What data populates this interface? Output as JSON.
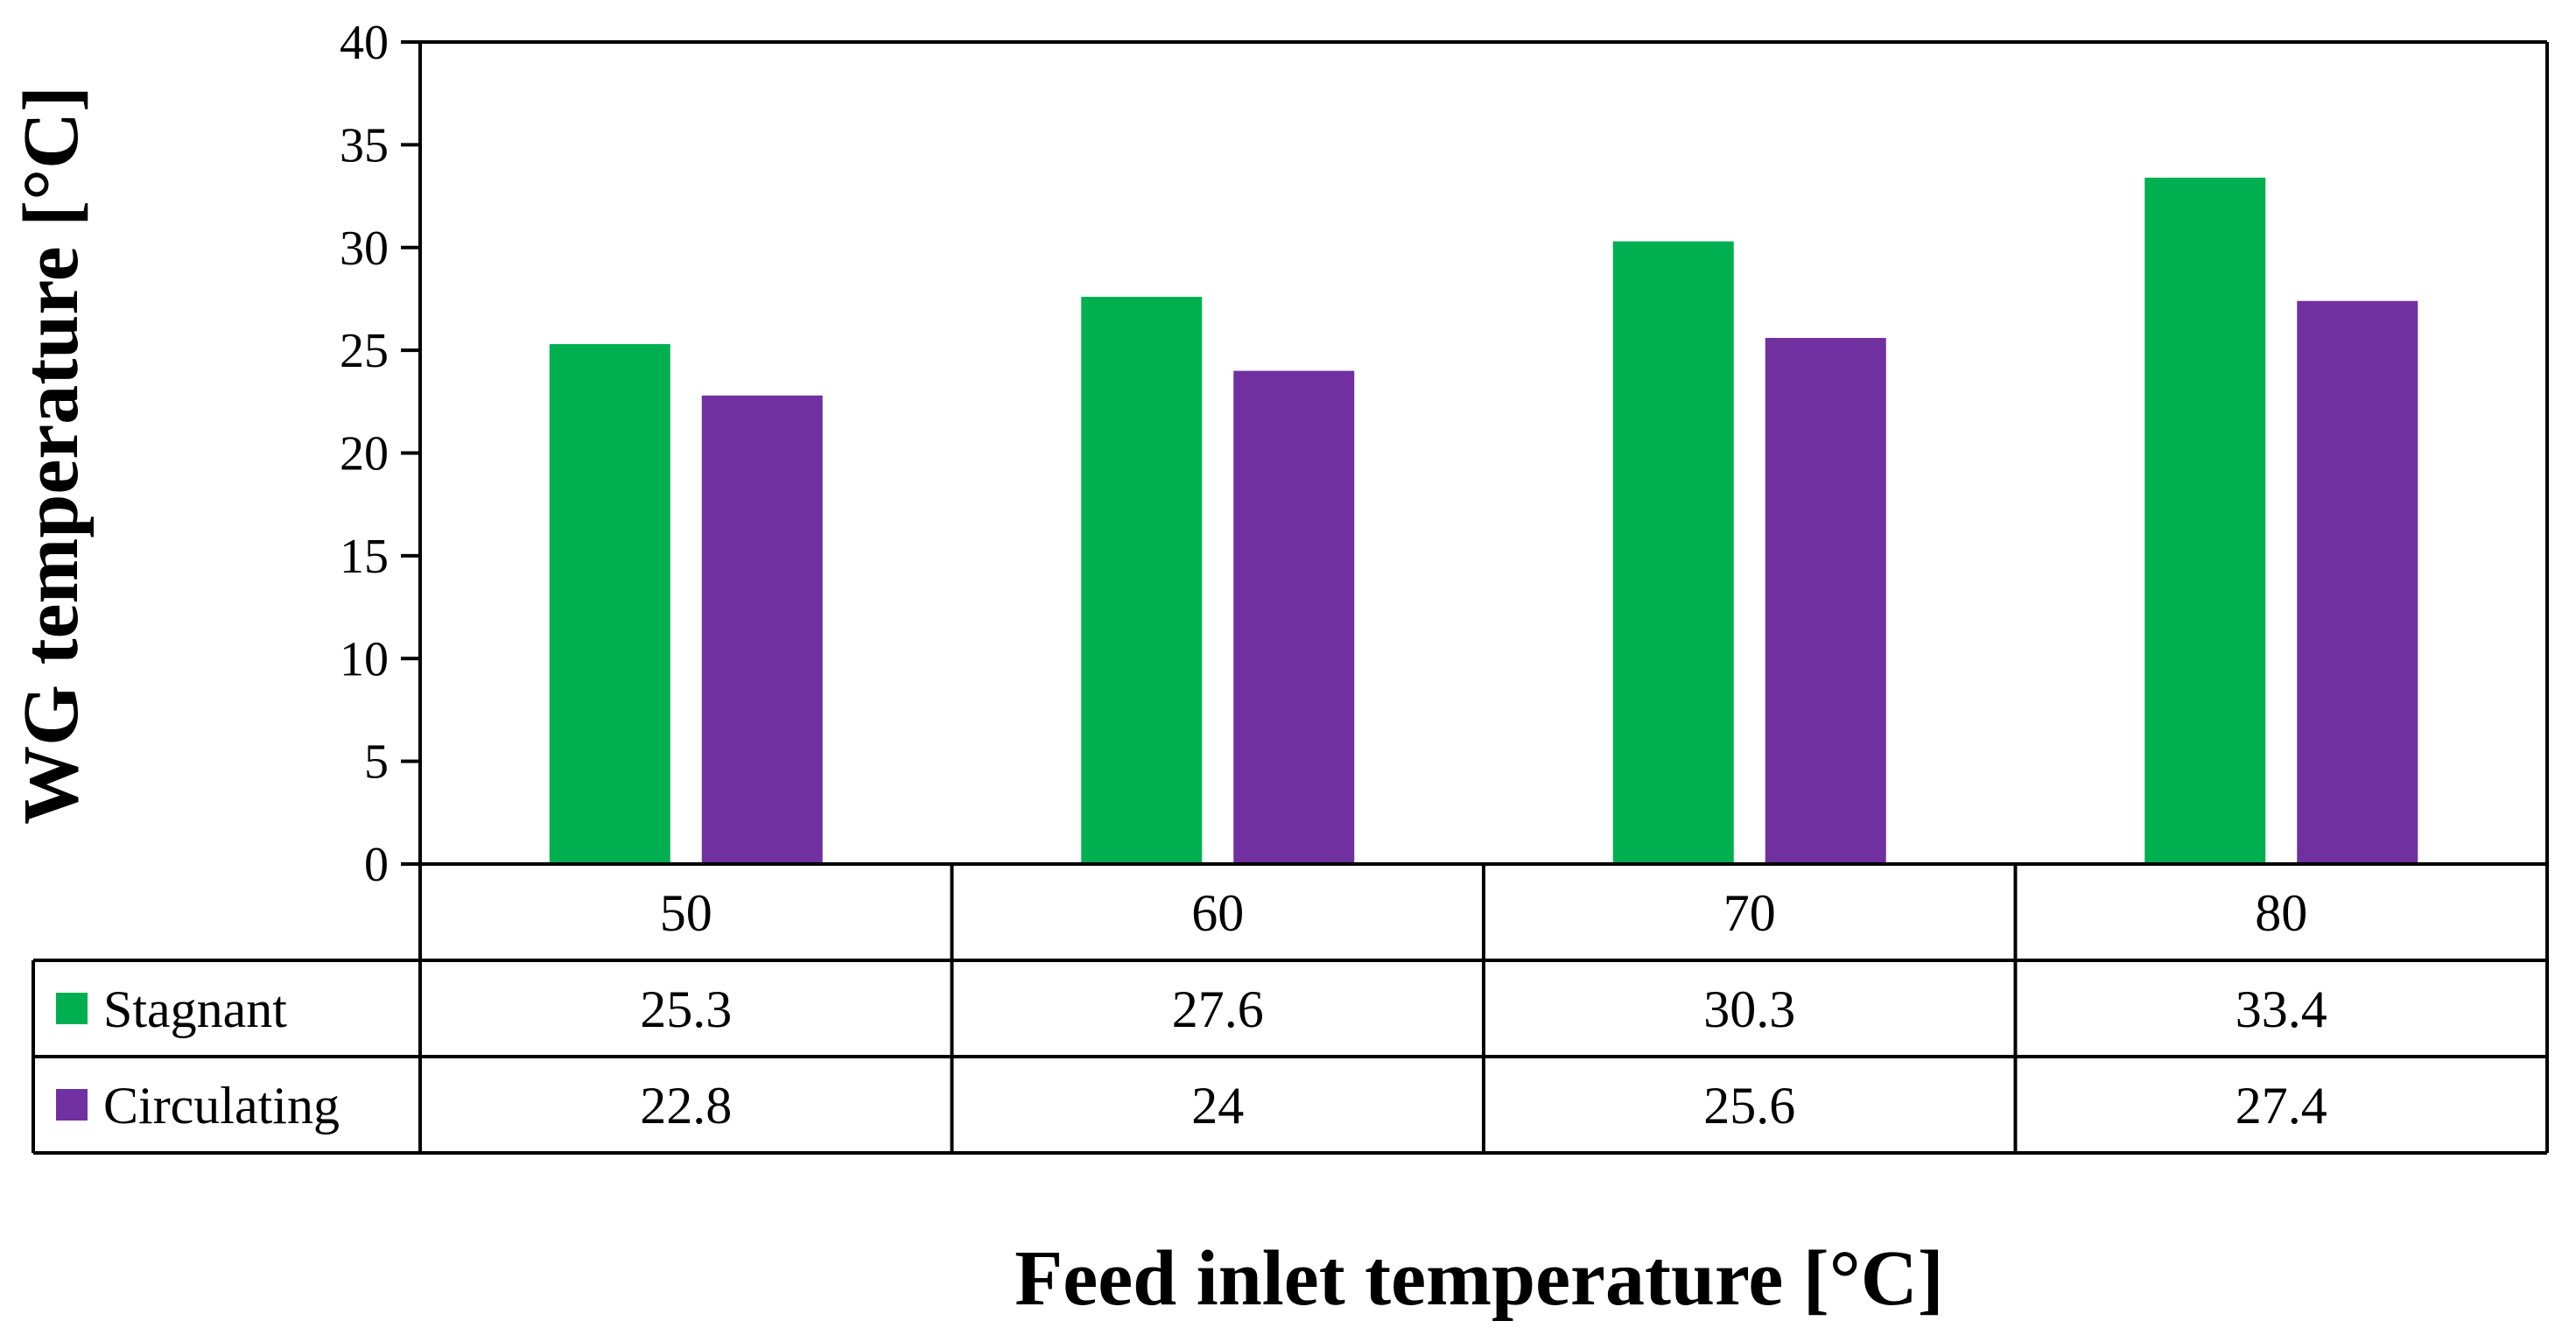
{
  "chart_data": {
    "type": "bar",
    "title": "",
    "xlabel": "Feed inlet temperature [°C]",
    "ylabel": "WG temperature [°C]",
    "ylim": [
      0,
      40
    ],
    "ytick_step": 5,
    "yticks": [
      "0",
      "5",
      "10",
      "15",
      "20",
      "25",
      "30",
      "35",
      "40"
    ],
    "categories": [
      "50",
      "60",
      "70",
      "80"
    ],
    "series": [
      {
        "name": "Stagnant",
        "color": "#00b050",
        "values": [
          25.3,
          27.6,
          30.3,
          33.4
        ],
        "labels": [
          "25.3",
          "27.6",
          "30.3",
          "33.4"
        ]
      },
      {
        "name": "Circulating",
        "color": "#7030a0",
        "values": [
          22.8,
          24.0,
          25.6,
          27.4
        ],
        "labels": [
          "22.8",
          "24",
          "25.6",
          "27.4"
        ]
      }
    ],
    "grid": false,
    "legend": "data-table"
  }
}
